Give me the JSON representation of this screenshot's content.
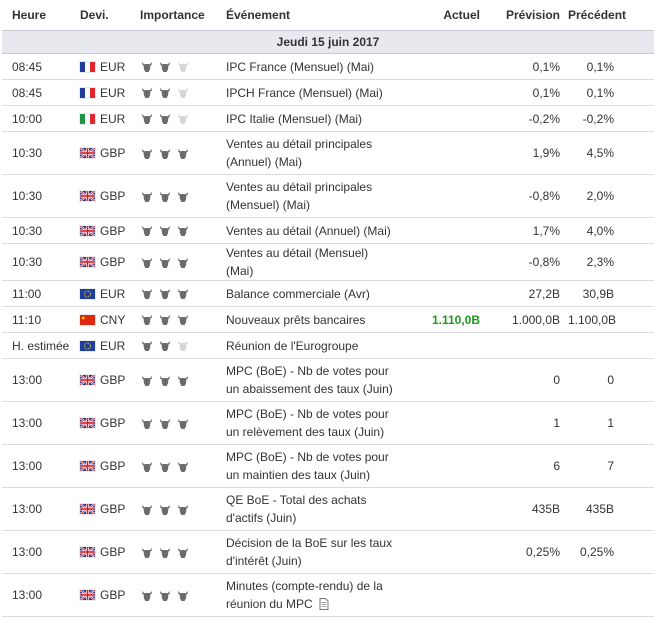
{
  "header": {
    "time": "Heure",
    "currency": "Devi.",
    "importance": "Importance",
    "event": "Événement",
    "actual": "Actuel",
    "forecast": "Prévision",
    "previous": "Précédent"
  },
  "date_label": "Jeudi 15 juin 2017",
  "colors": {
    "actual_positive": "#1e9a1e",
    "bull_active": "#6b6b6b",
    "bull_inactive": "#d6d6d6"
  },
  "events": [
    {
      "time": "08:45",
      "flag": "fr-flag-icon",
      "currency": "EUR",
      "importance": 2,
      "event": "IPC France (Mensuel) (Mai)",
      "actual": "",
      "forecast": "0,1%",
      "previous": "0,1%"
    },
    {
      "time": "08:45",
      "flag": "fr-flag-icon",
      "currency": "EUR",
      "importance": 2,
      "event": "IPCH France (Mensuel) (Mai)",
      "actual": "",
      "forecast": "0,1%",
      "previous": "0,1%"
    },
    {
      "time": "10:00",
      "flag": "it-flag-icon",
      "currency": "EUR",
      "importance": 2,
      "event": "IPC Italie (Mensuel) (Mai)",
      "actual": "",
      "forecast": "-0,2%",
      "previous": "-0,2%"
    },
    {
      "time": "10:30",
      "flag": "gb-flag-icon",
      "currency": "GBP",
      "importance": 3,
      "event": "Ventes au détail principales (Annuel) (Mai)",
      "actual": "",
      "forecast": "1,9%",
      "previous": "4,5%"
    },
    {
      "time": "10:30",
      "flag": "gb-flag-icon",
      "currency": "GBP",
      "importance": 3,
      "event": "Ventes au détail principales (Mensuel) (Mai)",
      "actual": "",
      "forecast": "-0,8%",
      "previous": "2,0%"
    },
    {
      "time": "10:30",
      "flag": "gb-flag-icon",
      "currency": "GBP",
      "importance": 3,
      "event": "Ventes au détail (Annuel) (Mai)",
      "actual": "",
      "forecast": "1,7%",
      "previous": "4,0%"
    },
    {
      "time": "10:30",
      "flag": "gb-flag-icon",
      "currency": "GBP",
      "importance": 3,
      "event": "Ventes au détail (Mensuel) (Mai)",
      "actual": "",
      "forecast": "-0,8%",
      "previous": "2,3%"
    },
    {
      "time": "11:00",
      "flag": "eu-flag-icon",
      "currency": "EUR",
      "importance": 3,
      "event": "Balance commerciale (Avr)",
      "actual": "",
      "forecast": "27,2B",
      "previous": "30,9B"
    },
    {
      "time": "11:10",
      "flag": "cn-flag-icon",
      "currency": "CNY",
      "importance": 3,
      "event": "Nouveaux prêts bancaires",
      "actual": "1.110,0B",
      "actual_positive": true,
      "forecast": "1.000,0B",
      "previous": "1.100,0B"
    },
    {
      "time": "H. estimée",
      "flag": "eu-flag-icon",
      "currency": "EUR",
      "importance": 2,
      "event": "Réunion de l'Eurogroupe",
      "actual": "",
      "forecast": "",
      "previous": ""
    },
    {
      "time": "13:00",
      "flag": "gb-flag-icon",
      "currency": "GBP",
      "importance": 3,
      "event": "MPC (BoE) - Nb de votes pour un abaissement des taux (Juin)",
      "actual": "",
      "forecast": "0",
      "previous": "0"
    },
    {
      "time": "13:00",
      "flag": "gb-flag-icon",
      "currency": "GBP",
      "importance": 3,
      "event": "MPC (BoE) - Nb de votes pour un relèvement des taux (Juin)",
      "actual": "",
      "forecast": "1",
      "previous": "1"
    },
    {
      "time": "13:00",
      "flag": "gb-flag-icon",
      "currency": "GBP",
      "importance": 3,
      "event": "MPC (BoE) - Nb de votes pour un maintien des taux (Juin)",
      "actual": "",
      "forecast": "6",
      "previous": "7"
    },
    {
      "time": "13:00",
      "flag": "gb-flag-icon",
      "currency": "GBP",
      "importance": 3,
      "event": "QE BoE - Total des achats d'actifs (Juin)",
      "actual": "",
      "forecast": "435B",
      "previous": "435B"
    },
    {
      "time": "13:00",
      "flag": "gb-flag-icon",
      "currency": "GBP",
      "importance": 3,
      "event": "Décision de la BoE sur les taux d'intérêt (Juin)",
      "actual": "",
      "forecast": "0,25%",
      "previous": "0,25%"
    },
    {
      "time": "13:00",
      "flag": "gb-flag-icon",
      "currency": "GBP",
      "importance": 3,
      "event": "Minutes (compte-rendu) de la réunion du MPC",
      "actual": "",
      "forecast": "",
      "previous": "",
      "has_document": true,
      "document_icon": "document-icon"
    }
  ]
}
